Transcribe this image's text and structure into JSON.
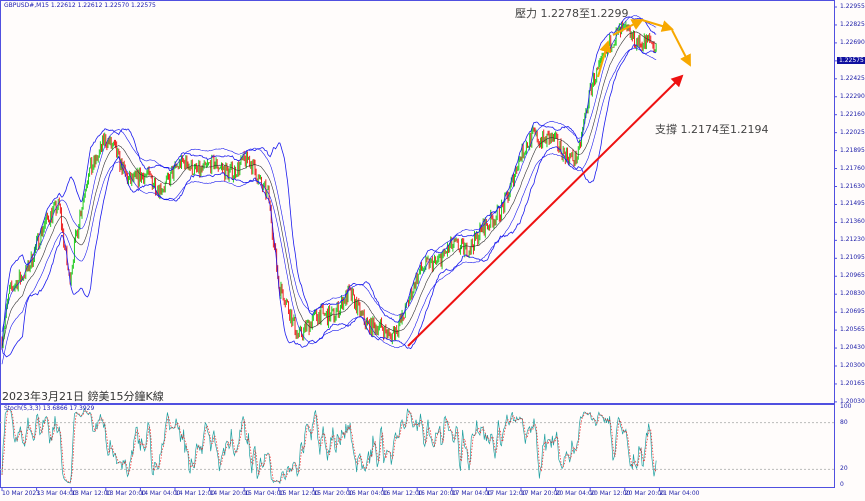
{
  "header": {
    "symbol_info": "GBPUSD#,M15  1.22612 1.22612 1.22570 1.22575"
  },
  "stoch_label": "Stoch(5,3,3) 13.6866 17.3929",
  "annotations": {
    "resistance": "壓力 1.2278至1.2299",
    "support": "支撐 1.2174至1.2194",
    "caption": "2023年3月21日 鎊美15分鐘K線"
  },
  "colors": {
    "bull": "#22cc22",
    "bear": "#ee2222",
    "bands": "#1a1aee",
    "resistance_arrows": "#f7a800",
    "support_arrow": "#ee1111",
    "axis": "#5050e0"
  },
  "chart_data": [
    {
      "type": "candlestick",
      "title": "GBPUSD#,M15",
      "ylim": [
        1.2003,
        1.2296
      ],
      "price_ticks": [
        "1.22955",
        "1.22825",
        "1.22690",
        "1.22575",
        "1.22425",
        "1.22290",
        "1.22160",
        "1.22025",
        "1.21895",
        "1.21760",
        "1.21630",
        "1.21495",
        "1.21360",
        "1.21230",
        "1.21095",
        "1.20965",
        "1.20830",
        "1.20695",
        "1.20565",
        "1.20430",
        "1.20300",
        "1.20165",
        "1.20030"
      ],
      "current_price": "1.22575",
      "time_ticks": [
        "10 Mar 2023",
        "13 Mar 04:00",
        "13 Mar 12:00",
        "13 Mar 20:00",
        "14 Mar 04:00",
        "14 Mar 12:00",
        "14 Mar 20:00",
        "15 Mar 04:00",
        "15 Mar 12:00",
        "15 Mar 20:00",
        "16 Mar 04:00",
        "16 Mar 12:00",
        "16 Mar 20:00",
        "17 Mar 04:00",
        "17 Mar 12:00",
        "17 Mar 20:00",
        "20 Mar 04:00",
        "20 Mar 12:00",
        "20 Mar 20:00",
        "21 Mar 04:00"
      ],
      "approx_close_path": [
        [
          0,
          1.2049
        ],
        [
          0.2,
          1.2079
        ],
        [
          0.95,
          1.2116
        ],
        [
          1.65,
          1.2153
        ],
        [
          1.95,
          1.2093
        ],
        [
          2.5,
          1.2175
        ],
        [
          2.95,
          1.2197
        ],
        [
          3.65,
          1.2171
        ],
        [
          4.5,
          1.2164
        ],
        [
          5.35,
          1.2179
        ],
        [
          6.2,
          1.2175
        ],
        [
          7.1,
          1.2179
        ],
        [
          7.7,
          1.216
        ],
        [
          8.0,
          1.2086
        ],
        [
          8.55,
          1.2056
        ],
        [
          9.15,
          1.2064
        ],
        [
          10.0,
          1.2079
        ],
        [
          10.9,
          1.2056
        ],
        [
          11.2,
          1.2049
        ],
        [
          11.75,
          1.2079
        ],
        [
          12.35,
          1.2108
        ],
        [
          13.2,
          1.2116
        ],
        [
          14.05,
          1.2131
        ],
        [
          14.65,
          1.216
        ],
        [
          15.35,
          1.2204
        ],
        [
          16.1,
          1.219
        ],
        [
          16.65,
          1.2186
        ],
        [
          17.1,
          1.2241
        ],
        [
          17.55,
          1.2271
        ],
        [
          18.15,
          1.2275
        ],
        [
          18.7,
          1.227
        ],
        [
          18.95,
          1.2258
        ]
      ],
      "approx_close_path_x_unit": "time tick index"
    },
    {
      "type": "line",
      "title": "Stoch(5,3,3)",
      "ylim": [
        0,
        100
      ],
      "y_ticks": [
        "100",
        "80",
        "20",
        "0"
      ],
      "main": 13.6866,
      "signal": 17.3929
    }
  ]
}
